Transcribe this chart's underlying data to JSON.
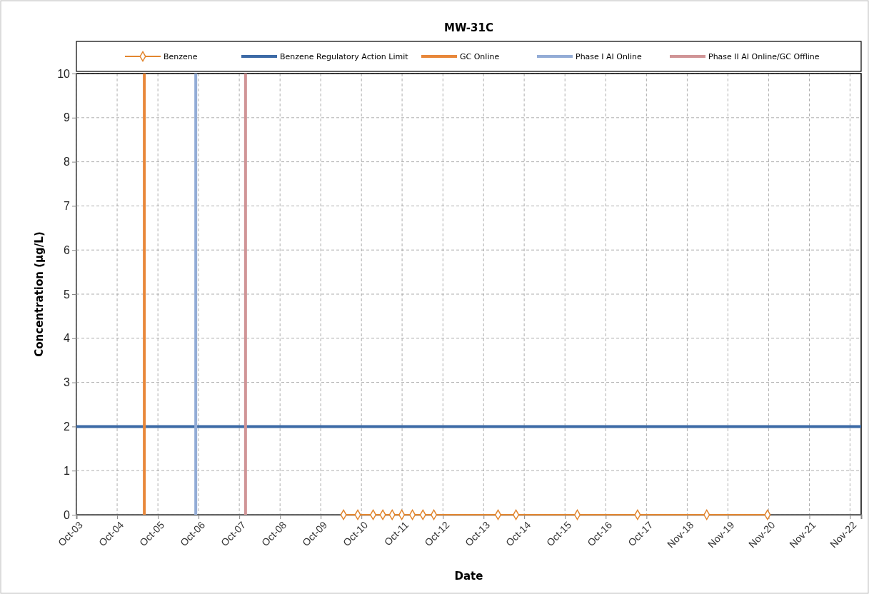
{
  "chart_data": {
    "type": "line",
    "title": "MW-31C",
    "xlabel": "Date",
    "ylabel": "Concentration (µg/L)",
    "series": [
      {
        "name": "Benzene",
        "color": "#e2862f",
        "x": [
          "2010-05-20",
          "2010-09-25",
          "2011-02-10",
          "2011-05-08",
          "2011-07-31",
          "2011-10-25",
          "2012-01-29",
          "2012-05-02",
          "2012-08-08",
          "2014-03-08",
          "2014-08-16",
          "2016-02-18",
          "2017-08-12",
          "2019-04-25",
          "2020-10-22"
        ],
        "values": [
          0,
          0,
          0,
          0,
          0,
          0,
          0,
          0,
          0,
          0,
          0,
          0,
          0,
          0,
          0
        ]
      }
    ],
    "ref_lines": [
      {
        "axis": "y",
        "value": 2,
        "label": "Benzene Regulatory Action Limit",
        "color": "#3c6aa6"
      },
      {
        "axis": "x",
        "value": "2005-06-26",
        "label": "GC Online",
        "color": "#e8873a"
      },
      {
        "axis": "x",
        "value": "2006-10-01",
        "label": "Phase I AI Online",
        "color": "#93acd6"
      },
      {
        "axis": "x",
        "value": "2007-12-22",
        "label": "Phase II AI Online/GC Offline",
        "color": "#d09496"
      }
    ],
    "xlim": [
      "2003-10-25",
      "2023-02-10"
    ],
    "xticks": [
      {
        "value": "2003-10-25",
        "label": "Oct-03"
      },
      {
        "value": "2004-10-25",
        "label": "Oct-04"
      },
      {
        "value": "2005-10-26",
        "label": "Oct-05"
      },
      {
        "value": "2006-10-26",
        "label": "Oct-06"
      },
      {
        "value": "2007-10-27",
        "label": "Oct-07"
      },
      {
        "value": "2008-10-27",
        "label": "Oct-08"
      },
      {
        "value": "2009-10-27",
        "label": "Oct-09"
      },
      {
        "value": "2010-10-28",
        "label": "Oct-10"
      },
      {
        "value": "2011-10-28",
        "label": "Oct-11"
      },
      {
        "value": "2012-10-29",
        "label": "Oct-12"
      },
      {
        "value": "2013-10-29",
        "label": "Oct-13"
      },
      {
        "value": "2014-10-29",
        "label": "Oct-14"
      },
      {
        "value": "2015-10-30",
        "label": "Oct-15"
      },
      {
        "value": "2016-10-30",
        "label": "Oct-16"
      },
      {
        "value": "2017-10-31",
        "label": "Oct-17"
      },
      {
        "value": "2018-11-01",
        "label": "Nov-18"
      },
      {
        "value": "2019-11-01",
        "label": "Nov-19"
      },
      {
        "value": "2020-11-01",
        "label": "Nov-20"
      },
      {
        "value": "2021-11-02",
        "label": "Nov-21"
      },
      {
        "value": "2022-11-02",
        "label": "Nov-22"
      }
    ],
    "ylim": [
      0,
      10
    ],
    "yticks": [
      0,
      1,
      2,
      3,
      4,
      5,
      6,
      7,
      8,
      9,
      10
    ],
    "grid": true,
    "legend": "top",
    "marker": "diamond",
    "line_style": "solid"
  }
}
